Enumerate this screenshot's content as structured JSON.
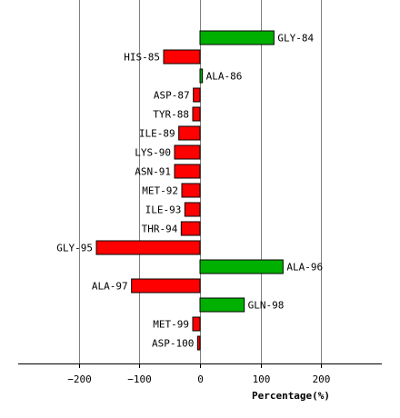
{
  "chart_data": {
    "type": "bar",
    "orientation": "horizontal",
    "xlabel": "Percentage(%)",
    "xlim": [
      -300,
      300
    ],
    "xticks": [
      -200,
      -100,
      0,
      100,
      200
    ],
    "xtick_labels": [
      "−200",
      "−100",
      "0",
      "100",
      "200"
    ],
    "grid": "vertical",
    "colors": {
      "positive": "#00b000",
      "negative": "#ff0000",
      "grid": "#808080",
      "outline": "#000000"
    },
    "categories": [
      "GLY-84",
      "HIS-85",
      "ALA-86",
      "ASP-87",
      "TYR-88",
      "ILE-89",
      "LYS-90",
      "ASN-91",
      "MET-92",
      "ILE-93",
      "THR-94",
      "GLY-95",
      "ALA-96",
      "ALA-97",
      "GLN-98",
      "MET-99",
      "ASP-100"
    ],
    "values": [
      122,
      -60,
      4,
      -11,
      -12,
      -35,
      -42,
      -42,
      -30,
      -25,
      -31,
      -171,
      137,
      -113,
      73,
      -12,
      -4
    ]
  }
}
